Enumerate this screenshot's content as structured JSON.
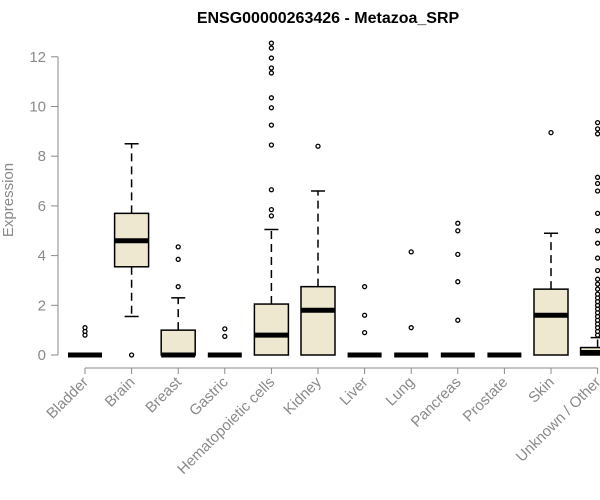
{
  "chart_data": {
    "type": "boxplot",
    "title": "ENSG00000263426 - Metazoa_SRP",
    "xlabel": "",
    "ylabel": "Expression",
    "ylim": [
      0,
      12.5
    ],
    "yticks": [
      0,
      2,
      4,
      6,
      8,
      10,
      12
    ],
    "grid": false,
    "colors": {
      "box_fill": "#efe8d0",
      "box_stroke": "#000000",
      "axis": "#8a8a8a"
    },
    "categories": [
      "Bladder",
      "Brain",
      "Breast",
      "Gastric",
      "Hematopoietic cells",
      "Kidney",
      "Liver",
      "Lung",
      "Pancreas",
      "Prostate",
      "Skin",
      "Unknown / Other"
    ],
    "boxes": [
      {
        "category": "Bladder",
        "q1": 0,
        "median": 0,
        "q3": 0,
        "whisker_low": 0,
        "whisker_high": 0,
        "outliers": [
          0.8,
          0.95,
          1.1
        ]
      },
      {
        "category": "Brain",
        "q1": 3.55,
        "median": 4.6,
        "q3": 5.7,
        "whisker_low": 1.55,
        "whisker_high": 8.5,
        "outliers": [
          0
        ]
      },
      {
        "category": "Breast",
        "q1": 0,
        "median": 0,
        "q3": 1.0,
        "whisker_low": 0,
        "whisker_high": 2.3,
        "outliers": [
          2.75,
          3.85,
          4.35
        ]
      },
      {
        "category": "Gastric",
        "q1": 0,
        "median": 0,
        "q3": 0,
        "whisker_low": 0,
        "whisker_high": 0,
        "outliers": [
          0.75,
          1.05
        ]
      },
      {
        "category": "Hematopoietic cells",
        "q1": 0,
        "median": 0.8,
        "q3": 2.05,
        "whisker_low": 0,
        "whisker_high": 5.05,
        "outliers": [
          5.6,
          5.85,
          6.65,
          8.45,
          9.25,
          9.95,
          10.35,
          11.35,
          11.55,
          11.95,
          12.35,
          12.55
        ]
      },
      {
        "category": "Kidney",
        "q1": 0,
        "median": 1.8,
        "q3": 2.75,
        "whisker_low": 0,
        "whisker_high": 6.6,
        "outliers": [
          8.4
        ]
      },
      {
        "category": "Liver",
        "q1": 0,
        "median": 0,
        "q3": 0,
        "whisker_low": 0,
        "whisker_high": 0,
        "outliers": [
          0.9,
          1.6,
          2.75
        ]
      },
      {
        "category": "Lung",
        "q1": 0,
        "median": 0,
        "q3": 0,
        "whisker_low": 0,
        "whisker_high": 0,
        "outliers": [
          1.1,
          4.15
        ]
      },
      {
        "category": "Pancreas",
        "q1": 0,
        "median": 0,
        "q3": 0,
        "whisker_low": 0,
        "whisker_high": 0,
        "outliers": [
          1.4,
          2.95,
          4.05,
          5.0,
          5.3
        ]
      },
      {
        "category": "Prostate",
        "q1": 0,
        "median": 0,
        "q3": 0,
        "whisker_low": 0,
        "whisker_high": 0,
        "outliers": []
      },
      {
        "category": "Skin",
        "q1": 0,
        "median": 1.6,
        "q3": 2.65,
        "whisker_low": 0,
        "whisker_high": 4.9,
        "outliers": [
          8.95
        ]
      },
      {
        "category": "Unknown / Other",
        "q1": 0,
        "median": 0.1,
        "q3": 0.3,
        "whisker_low": 0,
        "whisker_high": 0.7,
        "outliers": [
          0.8,
          0.95,
          1.1,
          1.25,
          1.4,
          1.55,
          1.7,
          1.85,
          2.0,
          2.15,
          2.3,
          2.45,
          2.65,
          2.85,
          3.05,
          3.4,
          3.9,
          4.5,
          5.0,
          5.7,
          6.6,
          6.9,
          7.15,
          8.9,
          9.1,
          9.35
        ]
      }
    ]
  }
}
